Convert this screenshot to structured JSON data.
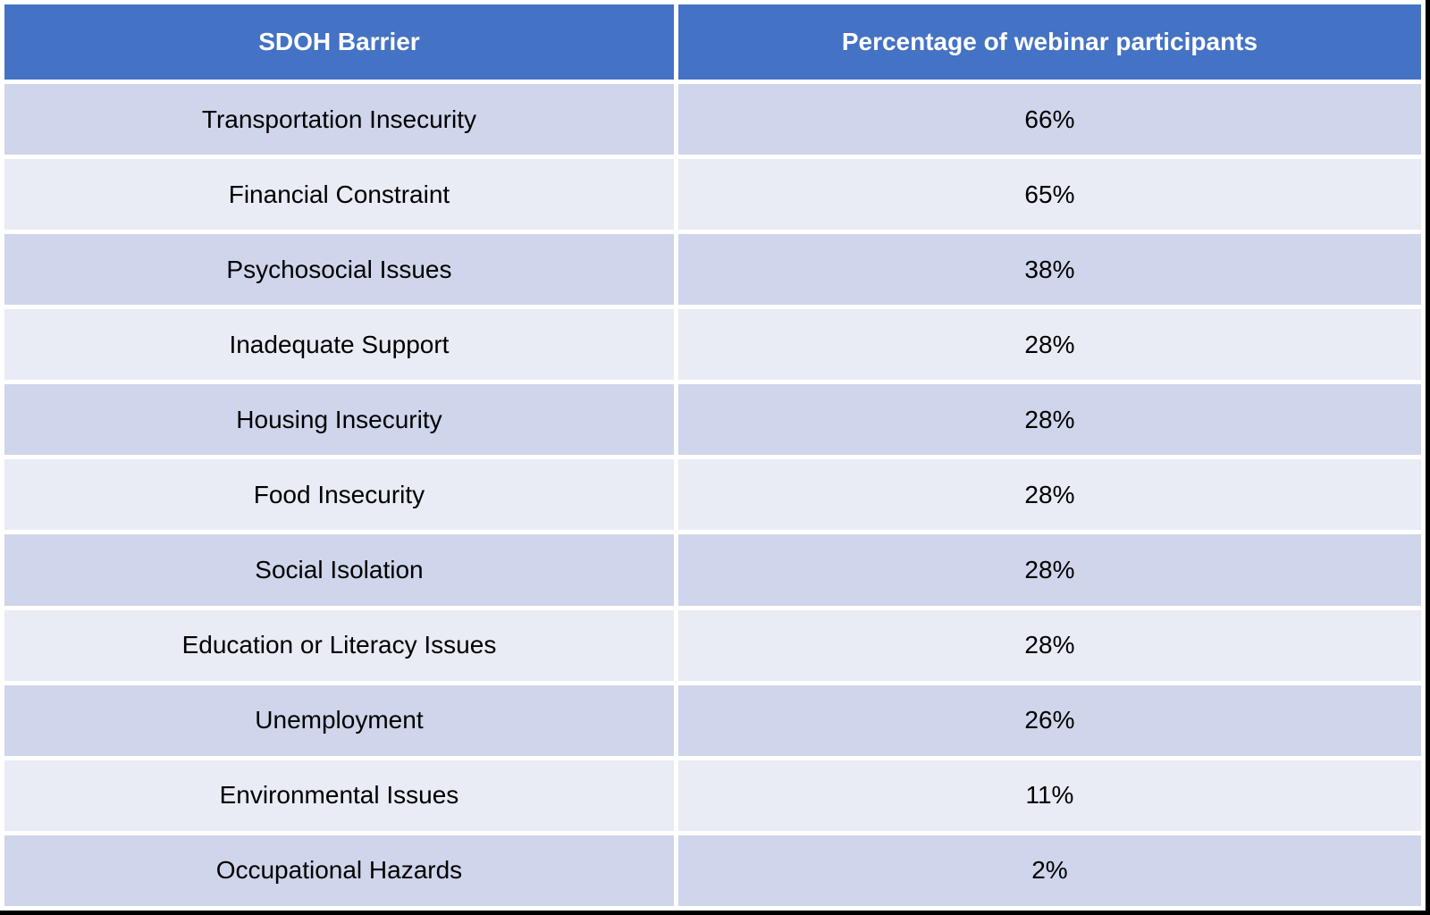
{
  "colors": {
    "header_bg": "#4472C4",
    "header_text": "#FFFFFF",
    "row_odd_bg": "#CFD5EA",
    "row_even_bg": "#E9EBF5",
    "cell_text": "#000000",
    "border": "#000000"
  },
  "chart_data": {
    "type": "table",
    "columns": [
      "SDOH Barrier",
      "Percentage of webinar participants"
    ],
    "rows": [
      {
        "barrier": "Transportation Insecurity",
        "percentage": "66%"
      },
      {
        "barrier": "Financial Constraint",
        "percentage": "65%"
      },
      {
        "barrier": "Psychosocial Issues",
        "percentage": "38%"
      },
      {
        "barrier": "Inadequate Support",
        "percentage": "28%"
      },
      {
        "barrier": "Housing Insecurity",
        "percentage": "28%"
      },
      {
        "barrier": "Food Insecurity",
        "percentage": "28%"
      },
      {
        "barrier": "Social Isolation",
        "percentage": "28%"
      },
      {
        "barrier": "Education or Literacy Issues",
        "percentage": "28%"
      },
      {
        "barrier": "Unemployment",
        "percentage": "26%"
      },
      {
        "barrier": "Environmental Issues",
        "percentage": "11%"
      },
      {
        "barrier": "Occupational Hazards",
        "percentage": "2%"
      }
    ],
    "values_numeric": [
      66,
      65,
      38,
      28,
      28,
      28,
      28,
      28,
      26,
      11,
      2
    ],
    "title": "",
    "legend": null,
    "grid": false
  }
}
